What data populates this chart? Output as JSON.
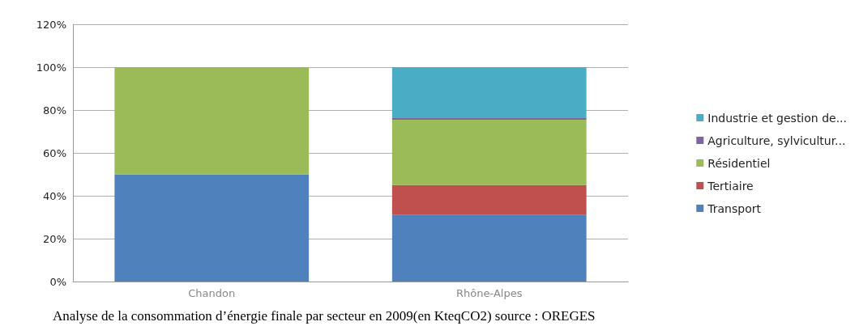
{
  "chart_data": {
    "type": "bar",
    "stacked": true,
    "categories": [
      "Chandon",
      "Rhône-Alpes"
    ],
    "series": [
      {
        "name": "Transport",
        "color": "#4f81bd",
        "values": [
          50,
          31
        ]
      },
      {
        "name": "Tertiaire",
        "color": "#c0504d",
        "values": [
          0,
          14
        ]
      },
      {
        "name": "Résidentiel",
        "color": "#9bbb59",
        "values": [
          50,
          30.5
        ]
      },
      {
        "name": "Agriculture, sylvicultur...",
        "color": "#8064a2",
        "values": [
          0,
          1
        ]
      },
      {
        "name": "Industrie et gestion de...",
        "color": "#4bacc6",
        "values": [
          0,
          23.5
        ]
      }
    ],
    "ylim": [
      0,
      120
    ],
    "yticks": [
      {
        "value": 0,
        "label": "0%"
      },
      {
        "value": 20,
        "label": "20%"
      },
      {
        "value": 40,
        "label": "40%"
      },
      {
        "value": 60,
        "label": "60%"
      },
      {
        "value": 80,
        "label": "80%"
      },
      {
        "value": 100,
        "label": "100%"
      },
      {
        "value": 120,
        "label": "120%"
      }
    ],
    "grid": "y",
    "legend": "right",
    "annotations": [
      "Analyse de la consommation d’énergie finale par secteur en 2009(en KteqCO2) source : OREGES"
    ]
  }
}
